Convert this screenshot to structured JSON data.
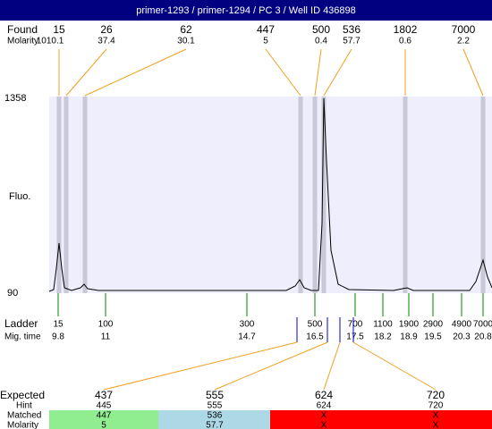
{
  "header": {
    "title": "primer-1293 / primer-1294 / PC 3 / Well ID 436898"
  },
  "found": {
    "label": "Found",
    "molarity_label": "Molarity",
    "peaks": [
      {
        "size": 15,
        "molarity": 1010.1
      },
      {
        "size": 26,
        "molarity": 37.4
      },
      {
        "size": 62,
        "molarity": 30.1
      },
      {
        "size": 447,
        "molarity": 5
      },
      {
        "size": 500,
        "molarity": 0.4
      },
      {
        "size": 536,
        "molarity": 57.7
      },
      {
        "size": 1802,
        "molarity": 0.6
      },
      {
        "size": 7000,
        "molarity": 2.2
      }
    ]
  },
  "plot": {
    "y_max": 1358,
    "y_min": 90,
    "y_label": "Fluo."
  },
  "ladder": {
    "label": "Ladder",
    "time_label": "Mig. time",
    "items": [
      {
        "size": 15,
        "time": 9.8
      },
      {
        "size": 100,
        "time": 11
      },
      {
        "size": 300,
        "time": 14.7
      },
      {
        "size": 500,
        "time": 16.5
      },
      {
        "size": 700,
        "time": 17.5
      },
      {
        "size": 1100,
        "time": 18.2
      },
      {
        "size": 1900,
        "time": 18.9
      },
      {
        "size": 2900,
        "time": 19.5
      },
      {
        "size": 4900,
        "time": 20.3
      },
      {
        "size": 7000,
        "time": 20.8
      }
    ]
  },
  "expected": {
    "label": "Expected",
    "hint_label": "Hint",
    "matched_label": "Matched",
    "molarity_label": "Molarity",
    "items": [
      {
        "expected": 437,
        "hint": 445,
        "matched": 447,
        "molarity": 5
      },
      {
        "expected": 555,
        "hint": 555,
        "matched": 536,
        "molarity": 57.7
      },
      {
        "expected": 624,
        "hint": 624,
        "matched": "X",
        "molarity": "X"
      },
      {
        "expected": 720,
        "hint": 720,
        "matched": "X",
        "molarity": "X"
      }
    ]
  }
}
